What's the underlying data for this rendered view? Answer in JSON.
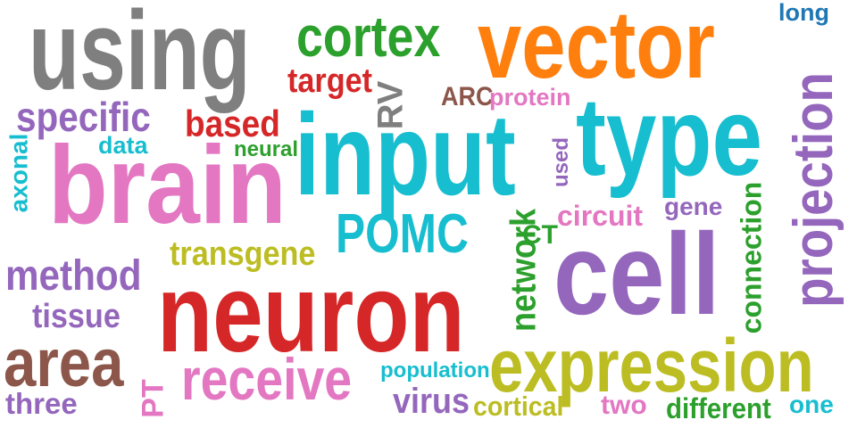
{
  "words": {
    "using": {
      "text": "using",
      "color": "#7f7f7f"
    },
    "vector": {
      "text": "vector",
      "color": "#ff7f0e"
    },
    "cortex": {
      "text": "cortex",
      "color": "#2ca02c"
    },
    "long": {
      "text": "long",
      "color": "#1f77b4"
    },
    "target": {
      "text": "target",
      "color": "#d62728"
    },
    "rv": {
      "text": "RV",
      "color": "#7f7f7f"
    },
    "arc": {
      "text": "ARC",
      "color": "#8c564b"
    },
    "protein": {
      "text": "protein",
      "color": "#e377c2"
    },
    "specific": {
      "text": "specific",
      "color": "#9467bd"
    },
    "based": {
      "text": "based",
      "color": "#d62728"
    },
    "input": {
      "text": "input",
      "color": "#17becf"
    },
    "type": {
      "text": "type",
      "color": "#17becf"
    },
    "projection": {
      "text": "projection",
      "color": "#9467bd"
    },
    "data": {
      "text": "data",
      "color": "#17becf"
    },
    "neural": {
      "text": "neural",
      "color": "#2ca02c"
    },
    "used": {
      "text": "used",
      "color": "#9467bd"
    },
    "axonal": {
      "text": "axonal",
      "color": "#17becf"
    },
    "brain": {
      "text": "brain",
      "color": "#e377c2"
    },
    "gene": {
      "text": "gene",
      "color": "#9467bd"
    },
    "circuit": {
      "text": "circuit",
      "color": "#e377c2"
    },
    "network": {
      "text": "network",
      "color": "#2ca02c"
    },
    "pomc": {
      "text": "POMC",
      "color": "#17becf"
    },
    "ct": {
      "text": "CT",
      "color": "#2ca02c"
    },
    "connection": {
      "text": "connection",
      "color": "#2ca02c"
    },
    "transgene": {
      "text": "transgene",
      "color": "#bcbd22"
    },
    "cell": {
      "text": "cell",
      "color": "#9467bd"
    },
    "method": {
      "text": "method",
      "color": "#9467bd"
    },
    "neuron": {
      "text": "neuron",
      "color": "#d62728"
    },
    "tissue": {
      "text": "tissue",
      "color": "#9467bd"
    },
    "area": {
      "text": "area",
      "color": "#8c564b"
    },
    "expression": {
      "text": "expression",
      "color": "#bcbd22"
    },
    "receive": {
      "text": "receive",
      "color": "#e377c2"
    },
    "population": {
      "text": "population",
      "color": "#17becf"
    },
    "pt": {
      "text": "PT",
      "color": "#e377c2"
    },
    "three": {
      "text": "three",
      "color": "#9467bd"
    },
    "virus": {
      "text": "virus",
      "color": "#9467bd"
    },
    "cortical": {
      "text": "cortical",
      "color": "#bcbd22"
    },
    "two": {
      "text": "two",
      "color": "#e377c2"
    },
    "different": {
      "text": "different",
      "color": "#2ca02c"
    },
    "one": {
      "text": "one",
      "color": "#17becf"
    }
  }
}
